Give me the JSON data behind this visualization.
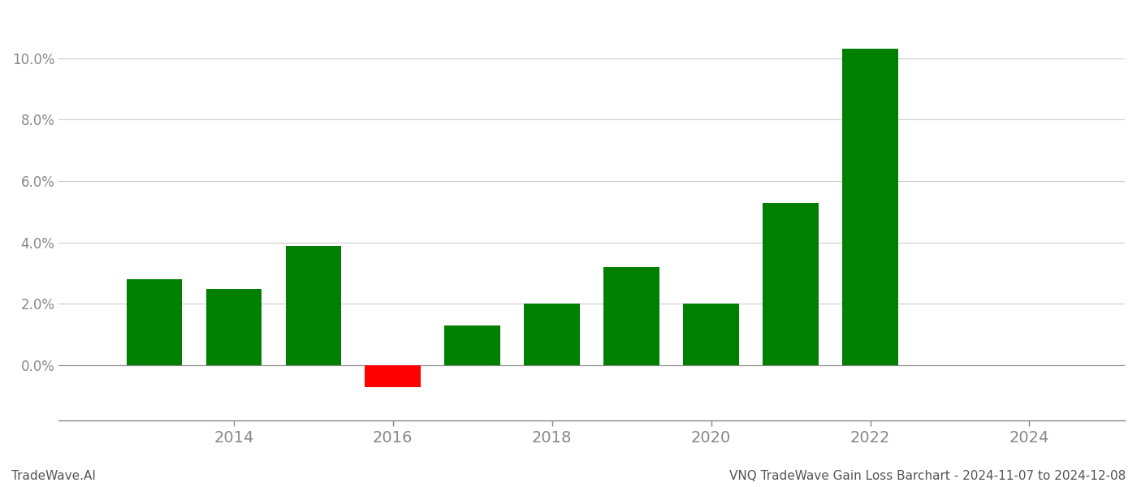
{
  "years": [
    2013,
    2014,
    2015,
    2016,
    2017,
    2018,
    2019,
    2020,
    2021,
    2022,
    2023
  ],
  "values": [
    0.028,
    0.025,
    0.039,
    -0.007,
    0.013,
    0.02,
    0.032,
    0.02,
    0.053,
    0.103,
    0.0
  ],
  "colors": [
    "#008000",
    "#008000",
    "#008000",
    "#ff0000",
    "#008000",
    "#008000",
    "#008000",
    "#008000",
    "#008000",
    "#008000",
    "#008000"
  ],
  "title": "VNQ TradeWave Gain Loss Barchart - 2024-11-07 to 2024-12-08",
  "watermark": "TradeWave.AI",
  "xlim_min": 2011.8,
  "xlim_max": 2025.2,
  "ylim_min": -0.018,
  "ylim_max": 0.115,
  "xticks": [
    2014,
    2016,
    2018,
    2020,
    2022,
    2024
  ],
  "ytick_step": 0.02,
  "background_color": "#ffffff",
  "bar_width": 0.7,
  "grid_color": "#cccccc",
  "axis_label_color": "#888888",
  "footer_color": "#555555",
  "spine_color": "#888888",
  "xtick_fontsize": 14,
  "ytick_fontsize": 12,
  "footer_fontsize": 11
}
